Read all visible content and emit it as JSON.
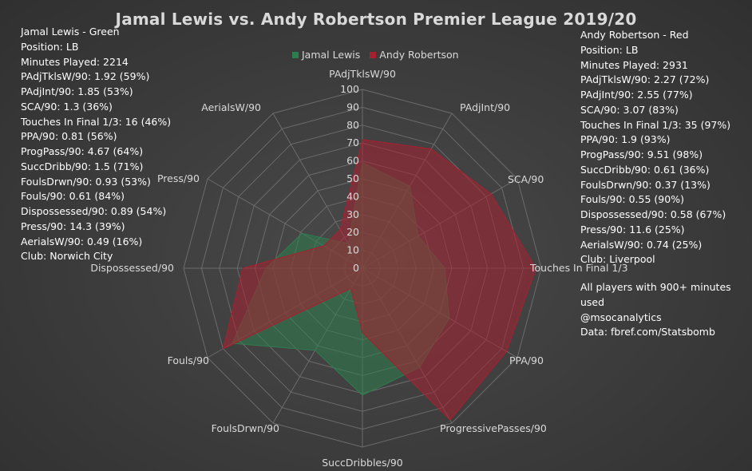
{
  "title": "Jamal Lewis vs. Andy Robertson Premier League 2019/20",
  "left_info": {
    "lines": [
      "Jamal Lewis - Green",
      "Position: LB",
      "Minutes Played: 2214",
      "PAdjTklsW/90: 1.92 (59%)",
      "PAdjInt/90: 1.85 (53%)",
      "SCA/90: 1.3 (36%)",
      "Touches In Final 1/3: 16 (46%)",
      "PPA/90: 0.81 (56%)",
      "ProgPass/90: 4.67 (64%)",
      "SuccDribb/90: 1.5 (71%)",
      "FoulsDrwn/90: 0.93 (53%)",
      "Fouls/90: 0.61 (84%)",
      "Dispossessed/90: 0.89 (54%)",
      "Press/90: 14.3 (39%)",
      "AerialsW/90: 0.49 (16%)",
      "Club: Norwich City"
    ]
  },
  "right_info": {
    "lines": [
      "Andy Robertson - Red",
      "Position: LB",
      "Minutes Played: 2931",
      "PAdjTklsW/90: 2.27 (72%)",
      "PAdjInt/90: 2.55 (77%)",
      "SCA/90: 3.07 (83%)",
      "Touches In Final 1/3: 35 (97%)",
      "PPA/90: 1.9 (93%)",
      "ProgPass/90: 9.51 (98%)",
      "SuccDribb/90: 0.61 (36%)",
      "FoulsDrwn/90: 0.37 (13%)",
      "Fouls/90: 0.55 (90%)",
      "Dispossessed/90: 0.58 (67%)",
      "Press/90: 11.6 (25%)",
      "AerialsW/90: 0.74 (25%)",
      "Club: Liverpool"
    ]
  },
  "notes": {
    "lines": [
      "All players with 900+ minutes",
      "used",
      "@msocanalytics",
      "Data: fbref.com/Statsbomb"
    ]
  },
  "colors": {
    "jamal": "#2e7d4f",
    "andy": "#a8202f",
    "grid": "#6b6b6b",
    "text": "#d9d9d9"
  },
  "chart_data": {
    "type": "radar",
    "title": "Jamal Lewis vs. Andy Robertson Premier League 2019/20",
    "categories": [
      "PAdjTklsW/90",
      "PAdjInt/90",
      "SCA/90",
      "Touches In Final 1/3",
      "PPA/90",
      "ProgressivePasses/90",
      "SuccDribbles/90",
      "FoulsDrwn/90",
      "Fouls/90",
      "Dispossessed/90",
      "Press/90",
      "AerialsW/90"
    ],
    "rlim": [
      0,
      100
    ],
    "ticks": [
      0,
      10,
      20,
      30,
      40,
      50,
      60,
      70,
      80,
      90,
      100
    ],
    "legend_position": "top",
    "series": [
      {
        "name": "Jamal Lewis",
        "color": "#2e7d4f",
        "values": [
          59,
          53,
          36,
          46,
          56,
          64,
          71,
          53,
          84,
          54,
          39,
          16
        ]
      },
      {
        "name": "Andy Robertson",
        "color": "#a8202f",
        "values": [
          72,
          77,
          83,
          97,
          93,
          98,
          36,
          13,
          90,
          67,
          25,
          25
        ]
      }
    ]
  }
}
